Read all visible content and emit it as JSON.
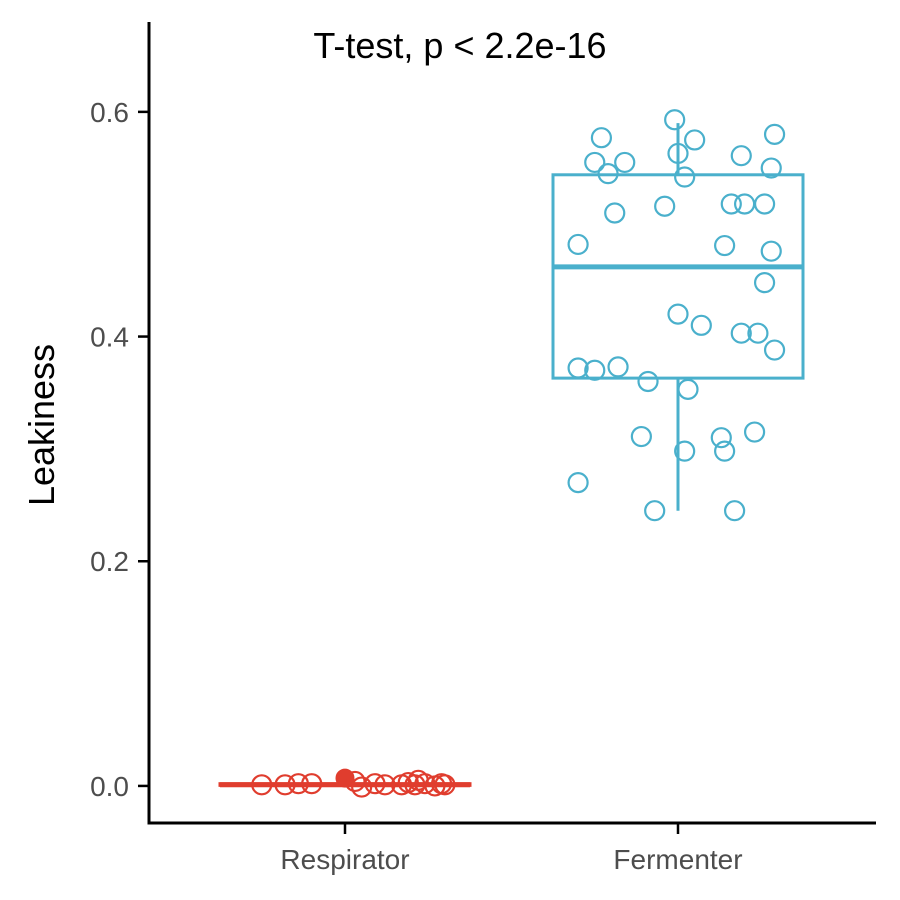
{
  "chart_data": {
    "type": "box",
    "title": "",
    "annotation": "T-test, p < 2.2e-16",
    "xlabel": "",
    "ylabel": "Leakiness",
    "ylim": [
      -0.033,
      0.68
    ],
    "yticks": [
      0.0,
      0.2,
      0.4,
      0.6
    ],
    "ytick_labels": [
      "0.0",
      "0.2",
      "0.4",
      "0.6"
    ],
    "categories": [
      "Respirator",
      "Fermenter"
    ],
    "grid": false,
    "legend": "none",
    "colors": {
      "Respirator": "#e03d2e",
      "Fermenter": "#4ab0cc"
    },
    "groups": [
      {
        "name": "Respirator",
        "box": {
          "min": 0.0,
          "q1": 0.0005,
          "median": 0.001,
          "q3": 0.002,
          "max": 0.004
        },
        "outliers": [
          0.007
        ],
        "points": [
          {
            "x": -0.25,
            "y": 0.001
          },
          {
            "x": -0.18,
            "y": 0.001
          },
          {
            "x": -0.14,
            "y": 0.002
          },
          {
            "x": -0.1,
            "y": 0.002
          },
          {
            "x": 0.03,
            "y": 0.004
          },
          {
            "x": 0.05,
            "y": -0.001
          },
          {
            "x": 0.09,
            "y": 0.002
          },
          {
            "x": 0.12,
            "y": 0.001
          },
          {
            "x": 0.17,
            "y": 0.001
          },
          {
            "x": 0.19,
            "y": 0.003
          },
          {
            "x": 0.21,
            "y": 0.001
          },
          {
            "x": 0.22,
            "y": 0.005
          },
          {
            "x": 0.24,
            "y": 0.002
          },
          {
            "x": 0.27,
            "y": 0.0
          },
          {
            "x": 0.29,
            "y": 0.002
          },
          {
            "x": 0.3,
            "y": 0.001
          }
        ]
      },
      {
        "name": "Fermenter",
        "box": {
          "min": 0.245,
          "q1": 0.363,
          "median": 0.462,
          "q3": 0.544,
          "max": 0.59
        },
        "outliers": [],
        "points": [
          {
            "x": -0.3,
            "y": 0.482
          },
          {
            "x": -0.3,
            "y": 0.372
          },
          {
            "x": -0.3,
            "y": 0.27
          },
          {
            "x": -0.25,
            "y": 0.555
          },
          {
            "x": -0.25,
            "y": 0.37
          },
          {
            "x": -0.23,
            "y": 0.577
          },
          {
            "x": -0.21,
            "y": 0.545
          },
          {
            "x": -0.19,
            "y": 0.51
          },
          {
            "x": -0.18,
            "y": 0.373
          },
          {
            "x": -0.16,
            "y": 0.555
          },
          {
            "x": -0.11,
            "y": 0.311
          },
          {
            "x": -0.09,
            "y": 0.36
          },
          {
            "x": -0.07,
            "y": 0.245
          },
          {
            "x": -0.04,
            "y": 0.516
          },
          {
            "x": -0.01,
            "y": 0.593
          },
          {
            "x": 0.0,
            "y": 0.563
          },
          {
            "x": 0.0,
            "y": 0.42
          },
          {
            "x": 0.02,
            "y": 0.542
          },
          {
            "x": 0.02,
            "y": 0.298
          },
          {
            "x": 0.03,
            "y": 0.353
          },
          {
            "x": 0.05,
            "y": 0.575
          },
          {
            "x": 0.07,
            "y": 0.41
          },
          {
            "x": 0.13,
            "y": 0.31
          },
          {
            "x": 0.14,
            "y": 0.481
          },
          {
            "x": 0.14,
            "y": 0.298
          },
          {
            "x": 0.16,
            "y": 0.518
          },
          {
            "x": 0.17,
            "y": 0.245
          },
          {
            "x": 0.19,
            "y": 0.561
          },
          {
            "x": 0.19,
            "y": 0.403
          },
          {
            "x": 0.2,
            "y": 0.518
          },
          {
            "x": 0.23,
            "y": 0.315
          },
          {
            "x": 0.24,
            "y": 0.403
          },
          {
            "x": 0.26,
            "y": 0.518
          },
          {
            "x": 0.26,
            "y": 0.448
          },
          {
            "x": 0.28,
            "y": 0.476
          },
          {
            "x": 0.28,
            "y": 0.55
          },
          {
            "x": 0.29,
            "y": 0.388
          },
          {
            "x": 0.29,
            "y": 0.58
          }
        ]
      }
    ]
  }
}
